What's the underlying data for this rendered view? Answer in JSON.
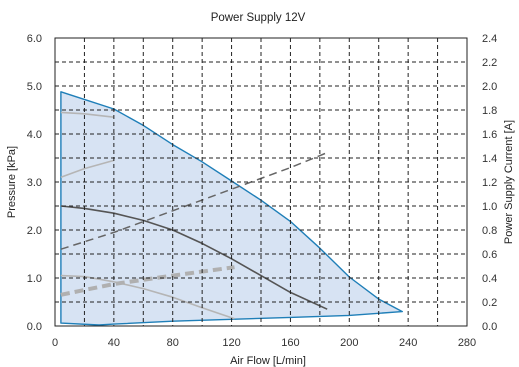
{
  "chart_data": {
    "type": "line",
    "title": "Power Supply 12V",
    "xlabel": "Air Flow [L/min]",
    "ylabel": "Pressure [kPa]",
    "y2label": "Power Supply Current [A]",
    "xlim": [
      0,
      280
    ],
    "ylim": [
      0,
      6.0
    ],
    "y2lim": [
      0,
      2.4
    ],
    "x_ticks": [
      "0",
      "40",
      "80",
      "120",
      "160",
      "200",
      "240",
      "280"
    ],
    "y_ticks": [
      "0.0",
      "1.0",
      "2.0",
      "3.0",
      "4.0",
      "5.0",
      "6.0"
    ],
    "y2_ticks": [
      "0.0",
      "0.2",
      "0.4",
      "0.6",
      "0.8",
      "1.0",
      "1.2",
      "1.4",
      "1.6",
      "1.8",
      "2.0",
      "2.2",
      "2.4"
    ],
    "grid": true,
    "colors": {
      "envelope_stroke": "#1f7fb8",
      "envelope_fill": "#c9daef",
      "dark_curve": "#555555",
      "light_curve": "#b5b5b5",
      "dashed_current": "#666666",
      "dashed_current_light": "#b0b0b0",
      "grid": "#222222"
    },
    "series": [
      {
        "style": "envelope",
        "axis": "left",
        "x": [
          4,
          20,
          40,
          60,
          80,
          100,
          120,
          140,
          160,
          180,
          200,
          220,
          236,
          200,
          160,
          120,
          80,
          40,
          30,
          4,
          4
        ],
        "y": [
          4.88,
          4.72,
          4.52,
          4.18,
          3.78,
          3.42,
          3.02,
          2.62,
          2.18,
          1.62,
          1.02,
          0.56,
          0.3,
          0.22,
          0.18,
          0.14,
          0.1,
          0.04,
          0.02,
          0.06,
          4.88
        ]
      },
      {
        "style": "dark",
        "axis": "left",
        "x": [
          4,
          20,
          40,
          60,
          80,
          100,
          120,
          140,
          160,
          185
        ],
        "y": [
          2.5,
          2.45,
          2.35,
          2.2,
          2.0,
          1.72,
          1.4,
          1.05,
          0.7,
          0.35
        ]
      },
      {
        "style": "light",
        "axis": "left",
        "x": [
          4,
          20,
          40,
          60,
          80,
          100,
          122
        ],
        "y": [
          1.05,
          1.03,
          0.92,
          0.78,
          0.6,
          0.38,
          0.15
        ]
      },
      {
        "style": "light",
        "axis": "left",
        "x": [
          4,
          20,
          40
        ],
        "y": [
          4.45,
          4.42,
          4.35
        ]
      },
      {
        "style": "light",
        "axis": "left",
        "x": [
          4,
          20,
          40
        ],
        "y": [
          3.1,
          3.28,
          3.45
        ]
      },
      {
        "style": "dashed",
        "axis": "right",
        "x": [
          4,
          40,
          80,
          120,
          160,
          186
        ],
        "y": [
          0.64,
          0.78,
          0.96,
          1.14,
          1.32,
          1.45
        ]
      },
      {
        "style": "dashed-thick",
        "axis": "right",
        "x": [
          4,
          40,
          80,
          122
        ],
        "y": [
          0.26,
          0.35,
          0.42,
          0.49
        ]
      }
    ]
  }
}
